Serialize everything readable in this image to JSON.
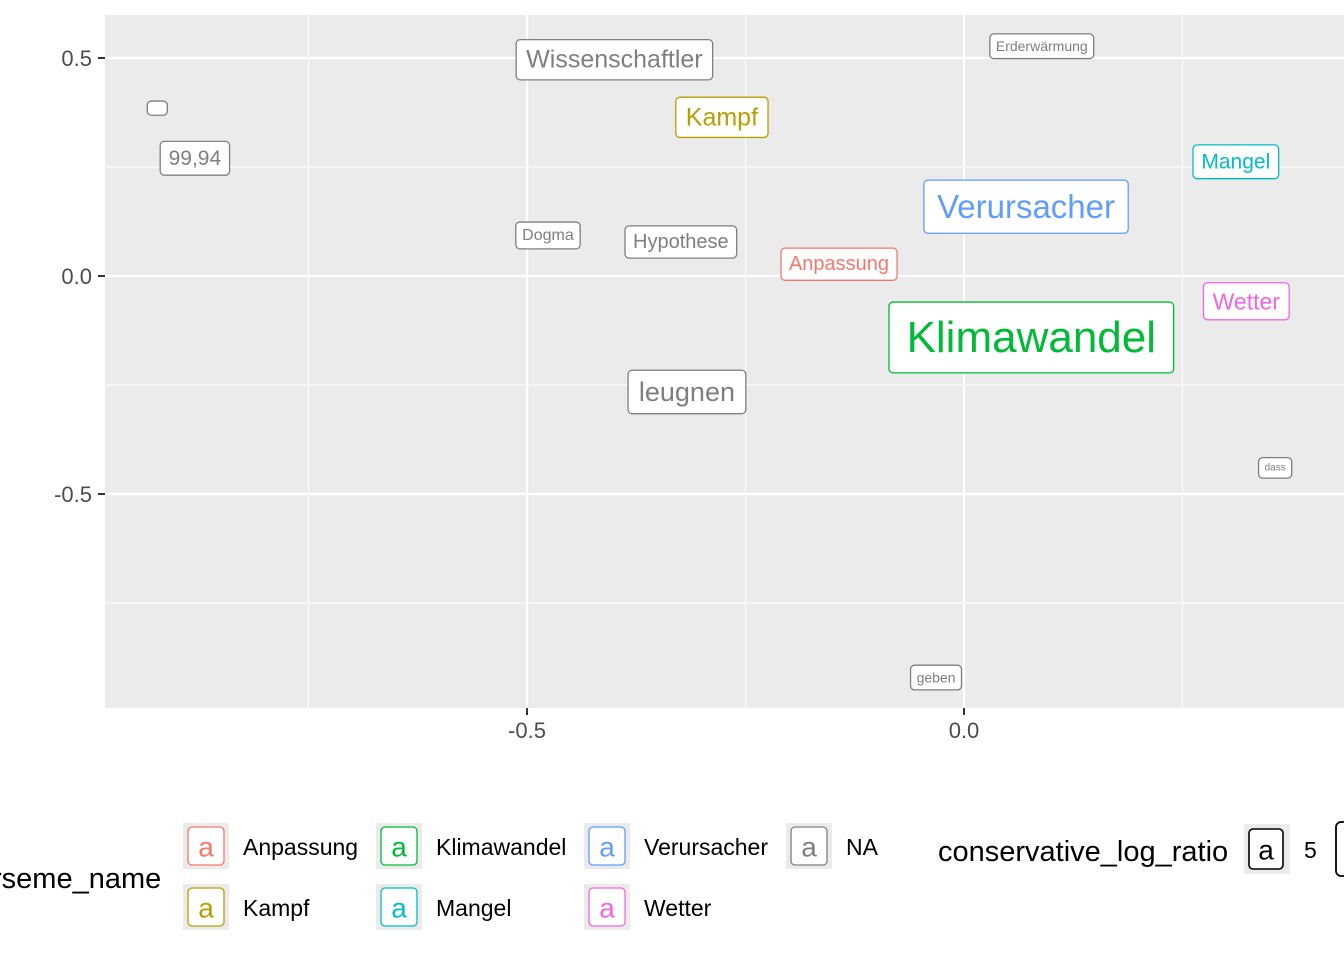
{
  "chart_data": {
    "type": "scatter",
    "title": "",
    "xlabel": "",
    "ylabel": "",
    "xlim": [
      -0.97,
      0.41
    ],
    "ylim": [
      -0.99,
      0.6
    ],
    "x_ticks": [
      {
        "value": -0.5,
        "label": "-0.5"
      },
      {
        "value": 0.0,
        "label": "0.0"
      }
    ],
    "y_ticks": [
      {
        "value": 0.5,
        "label": "0.5"
      },
      {
        "value": 0.0,
        "label": "0.0"
      },
      {
        "value": -0.5,
        "label": "-0.5"
      }
    ],
    "x_minor": [
      -0.75,
      -0.25,
      0.25
    ],
    "y_minor": [
      0.25,
      -0.25,
      -0.75
    ],
    "grid": true,
    "points": [
      {
        "label": "Wissenschaftler",
        "x": -0.4,
        "y": 0.496,
        "group": "NA",
        "size": 25
      },
      {
        "label": "Kampf",
        "x": -0.277,
        "y": 0.364,
        "group": "Kampf",
        "size": 25
      },
      {
        "label": "Erderwärmung",
        "x": 0.089,
        "y": 0.527,
        "group": "NA",
        "size": 14
      },
      {
        "label": ".",
        "x": -0.923,
        "y": 0.385,
        "group": "NA",
        "size": 4
      },
      {
        "label": "99,94",
        "x": -0.88,
        "y": 0.27,
        "group": "NA",
        "size": 21
      },
      {
        "label": "Mangel",
        "x": 0.311,
        "y": 0.262,
        "group": "Mangel",
        "size": 21
      },
      {
        "label": "Verursacher",
        "x": 0.071,
        "y": 0.159,
        "group": "Verursacher",
        "size": 33
      },
      {
        "label": "Dogma",
        "x": -0.476,
        "y": 0.093,
        "group": "NA",
        "size": 16
      },
      {
        "label": "Hypothese",
        "x": -0.324,
        "y": 0.078,
        "group": "NA",
        "size": 20
      },
      {
        "label": "Anpassung",
        "x": -0.143,
        "y": 0.027,
        "group": "Anpassung",
        "size": 20
      },
      {
        "label": "Wetter",
        "x": 0.323,
        "y": -0.058,
        "group": "Wetter",
        "size": 23
      },
      {
        "label": "Klimawandel",
        "x": 0.077,
        "y": -0.141,
        "group": "Klimawandel",
        "size": 44
      },
      {
        "label": "leugnen",
        "x": -0.317,
        "y": -0.266,
        "group": "NA",
        "size": 27
      },
      {
        "label": "dass",
        "x": 0.356,
        "y": -0.44,
        "group": "NA",
        "size": 10
      },
      {
        "label": "geben",
        "x": -0.032,
        "y": -0.921,
        "group": "NA",
        "size": 14
      }
    ],
    "groups": [
      {
        "name": "Anpassung",
        "color": "#F8766D"
      },
      {
        "name": "Kampf",
        "color": "#B79F00"
      },
      {
        "name": "Klimawandel",
        "color": "#00BA38"
      },
      {
        "name": "Mangel",
        "color": "#00BFC4"
      },
      {
        "name": "Verursacher",
        "color": "#619CFF"
      },
      {
        "name": "Wetter",
        "color": "#F564E3"
      },
      {
        "name": "NA",
        "color": "#7F7F7F"
      }
    ],
    "legend": {
      "color_title": "rseme_name",
      "color_key_glyph": "a",
      "color_rows": [
        [
          "Anpassung",
          "Klimawandel",
          "Verursacher",
          "NA"
        ],
        [
          "Kampf",
          "Mangel",
          "Wetter"
        ]
      ],
      "size_title": "conservative_log_ratio",
      "size_key_glyph": "a",
      "size_entries": [
        "5"
      ],
      "placement": "bottom"
    },
    "colors": {
      "panel_background": "#EBEBEB",
      "grid_line": "#FFFFFF",
      "tick_text": "#4D4D4D",
      "tick_mark": "#333333"
    }
  }
}
